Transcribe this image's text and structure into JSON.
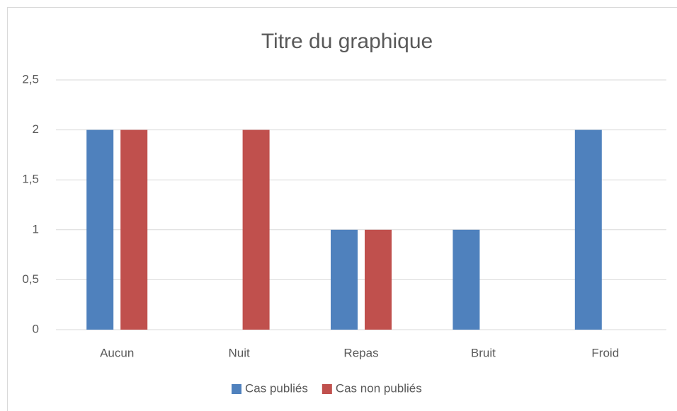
{
  "chart_data": {
    "type": "bar",
    "title": "Titre du graphique",
    "categories": [
      "Aucun",
      "Nuit",
      "Repas",
      "Bruit",
      "Froid"
    ],
    "series": [
      {
        "name": "Cas publiés",
        "color": "#4f81bd",
        "values": [
          2,
          0,
          1,
          1,
          2
        ]
      },
      {
        "name": "Cas non publiés",
        "color": "#c0504d",
        "values": [
          2,
          2,
          1,
          0,
          0
        ]
      }
    ],
    "ylim": [
      0,
      2.5
    ],
    "yticks": [
      0,
      {
        "value": 0.5,
        "label": "0,5"
      },
      1,
      {
        "value": 1.5,
        "label": "1,5"
      },
      2,
      {
        "value": 2.5,
        "label": "2,5"
      }
    ],
    "grid": true,
    "legend": "bottom"
  }
}
